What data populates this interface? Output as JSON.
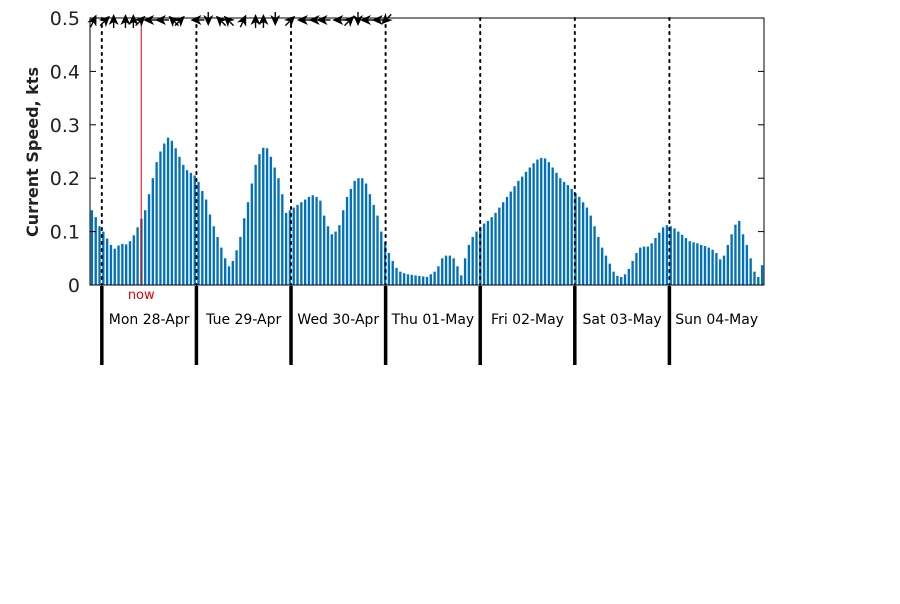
{
  "chart_data": {
    "type": "bar",
    "ylabel": "Current Speed, kts",
    "ylim": [
      0,
      0.5
    ],
    "yticks": [
      0,
      0.1,
      0.2,
      0.3,
      0.4,
      0.5
    ],
    "ytick_labels": [
      "0",
      "0.1",
      "0.2",
      "0.3",
      "0.4",
      "0.5"
    ],
    "x_start": "2025-04-27 21:00",
    "x_interval_hours": 1,
    "x_range": [
      "2025-04-27 21:00",
      "2025-05-04 23:00"
    ],
    "day_labels": [
      "Mon 28-Apr",
      "Tue 29-Apr",
      "Wed 30-Apr",
      "Thu 01-May",
      "Fri 02-May",
      "Sat 03-May",
      "Sun 04-May"
    ],
    "day_boundaries": [
      "2025-04-28 00:00",
      "2025-04-29 00:00",
      "2025-04-30 00:00",
      "2025-05-01 00:00",
      "2025-05-02 00:00",
      "2025-05-03 00:00",
      "2025-05-04 00:00"
    ],
    "now_label": "now",
    "now_time": "2025-04-28 10:00",
    "grid": false,
    "colors": {
      "bar": "#0072BD",
      "now_line": "#e60000",
      "now_text": "#e60000",
      "axis": "#000000"
    },
    "values": [
      0.14,
      0.127,
      0.11,
      0.1,
      0.087,
      0.075,
      0.068,
      0.074,
      0.077,
      0.076,
      0.082,
      0.093,
      0.108,
      0.124,
      0.14,
      0.17,
      0.2,
      0.23,
      0.25,
      0.265,
      0.276,
      0.27,
      0.256,
      0.24,
      0.225,
      0.215,
      0.21,
      0.205,
      0.193,
      0.176,
      0.16,
      0.132,
      0.11,
      0.09,
      0.07,
      0.05,
      0.035,
      0.045,
      0.065,
      0.09,
      0.125,
      0.155,
      0.19,
      0.225,
      0.245,
      0.257,
      0.256,
      0.24,
      0.22,
      0.2,
      0.17,
      0.135,
      0.14,
      0.145,
      0.15,
      0.155,
      0.16,
      0.165,
      0.168,
      0.165,
      0.158,
      0.13,
      0.11,
      0.095,
      0.1,
      0.112,
      0.14,
      0.165,
      0.18,
      0.195,
      0.2,
      0.2,
      0.19,
      0.17,
      0.15,
      0.13,
      0.1,
      0.08,
      0.06,
      0.045,
      0.032,
      0.025,
      0.022,
      0.02,
      0.019,
      0.018,
      0.017,
      0.016,
      0.015,
      0.02,
      0.025,
      0.035,
      0.05,
      0.055,
      0.055,
      0.05,
      0.035,
      0.018,
      0.05,
      0.075,
      0.09,
      0.1,
      0.108,
      0.115,
      0.12,
      0.127,
      0.135,
      0.145,
      0.155,
      0.165,
      0.175,
      0.185,
      0.195,
      0.203,
      0.212,
      0.22,
      0.228,
      0.235,
      0.238,
      0.237,
      0.23,
      0.22,
      0.21,
      0.2,
      0.193,
      0.187,
      0.18,
      0.172,
      0.165,
      0.155,
      0.145,
      0.13,
      0.11,
      0.09,
      0.07,
      0.055,
      0.04,
      0.025,
      0.017,
      0.015,
      0.02,
      0.03,
      0.045,
      0.06,
      0.07,
      0.072,
      0.072,
      0.078,
      0.088,
      0.098,
      0.108,
      0.112,
      0.11,
      0.106,
      0.1,
      0.094,
      0.088,
      0.082,
      0.08,
      0.078,
      0.075,
      0.073,
      0.07,
      0.066,
      0.06,
      0.048,
      0.055,
      0.075,
      0.095,
      0.113,
      0.12,
      0.095,
      0.075,
      0.05,
      0.025,
      0.015,
      0.037
    ],
    "direction_arrows": [
      {
        "time": "2025-04-27 22:00",
        "direction": "north-northeast"
      },
      {
        "time": "2025-04-28 01:00",
        "direction": "northeast"
      },
      {
        "time": "2025-04-28 03:00",
        "direction": "north"
      },
      {
        "time": "2025-04-28 06:00",
        "direction": "north"
      },
      {
        "time": "2025-04-28 08:00",
        "direction": "north"
      },
      {
        "time": "2025-04-28 10:00",
        "direction": "northeast"
      },
      {
        "time": "2025-04-28 12:00",
        "direction": "west"
      },
      {
        "time": "2025-04-28 15:00",
        "direction": "west"
      },
      {
        "time": "2025-04-28 18:00",
        "direction": "northwest"
      },
      {
        "time": "2025-04-28 20:00",
        "direction": "northeast"
      },
      {
        "time": "2025-04-29 00:00",
        "direction": "west"
      },
      {
        "time": "2025-04-29 03:00",
        "direction": "south"
      },
      {
        "time": "2025-04-29 06:00",
        "direction": "northwest"
      },
      {
        "time": "2025-04-29 08:00",
        "direction": "northwest"
      },
      {
        "time": "2025-04-29 12:00",
        "direction": "north-northeast"
      },
      {
        "time": "2025-04-29 15:00",
        "direction": "north"
      },
      {
        "time": "2025-04-29 17:00",
        "direction": "north"
      },
      {
        "time": "2025-04-29 20:00",
        "direction": "south"
      },
      {
        "time": "2025-04-30 00:00",
        "direction": "northeast"
      },
      {
        "time": "2025-04-30 03:00",
        "direction": "west"
      },
      {
        "time": "2025-04-30 06:00",
        "direction": "west"
      },
      {
        "time": "2025-04-30 08:00",
        "direction": "west"
      },
      {
        "time": "2025-04-30 12:00",
        "direction": "west"
      },
      {
        "time": "2025-04-30 15:00",
        "direction": "northeast"
      },
      {
        "time": "2025-04-30 17:00",
        "direction": "south"
      },
      {
        "time": "2025-04-30 19:00",
        "direction": "west"
      },
      {
        "time": "2025-04-30 22:00",
        "direction": "west"
      },
      {
        "time": "2025-05-01 00:00",
        "direction": "southwest"
      }
    ]
  }
}
